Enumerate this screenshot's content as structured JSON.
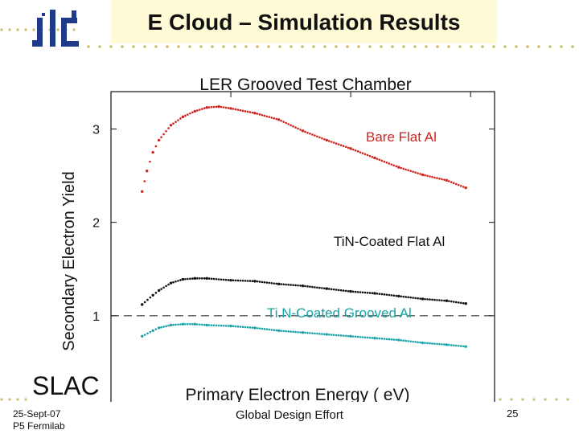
{
  "slide": {
    "title": "E Cloud – Simulation Results",
    "logo": "ilc",
    "slac": "SLAC",
    "date_line1": "25-Sept-07",
    "date_line2": "P5 Fermilab",
    "footer": "Global Design Effort",
    "page": "25",
    "colors": {
      "title_bg": "#fffbd6",
      "logo": "#1f3a8a",
      "dots": "#cbbf6a"
    }
  },
  "chart_data": {
    "type": "scatter",
    "title": "LER Grooved Test Chamber",
    "xlabel": "Primary Electron Energy  ( eV)",
    "ylabel": "Secondary  Electron Yield",
    "xlim": [
      0,
      1600
    ],
    "ylim": [
      0,
      3.4
    ],
    "xticks": [
      0,
      500,
      1000,
      1500
    ],
    "yticks": [
      0,
      1,
      2,
      3
    ],
    "reference_line": {
      "y": 1.0,
      "style": "dashed"
    },
    "series": [
      {
        "name": "Bare Flat Al",
        "color": "#d0231d",
        "x": [
          130,
          150,
          175,
          200,
          250,
          300,
          350,
          400,
          450,
          500,
          600,
          700,
          800,
          900,
          1000,
          1100,
          1200,
          1300,
          1400,
          1480
        ],
        "y": [
          2.33,
          2.55,
          2.75,
          2.88,
          3.04,
          3.13,
          3.19,
          3.23,
          3.24,
          3.22,
          3.17,
          3.1,
          2.98,
          2.88,
          2.79,
          2.69,
          2.59,
          2.51,
          2.45,
          2.37
        ]
      },
      {
        "name": "TiN-Coated  Flat  Al",
        "color": "#111111",
        "x": [
          130,
          175,
          200,
          250,
          300,
          350,
          400,
          500,
          600,
          700,
          800,
          900,
          1000,
          1100,
          1200,
          1300,
          1400,
          1480
        ],
        "y": [
          1.12,
          1.22,
          1.27,
          1.35,
          1.39,
          1.4,
          1.4,
          1.38,
          1.37,
          1.34,
          1.32,
          1.29,
          1.26,
          1.24,
          1.21,
          1.18,
          1.16,
          1.13
        ]
      },
      {
        "name": "Ti.N-Coated  Grooved  Al",
        "color": "#19a3a6",
        "x": [
          130,
          175,
          200,
          250,
          300,
          350,
          400,
          500,
          600,
          700,
          800,
          900,
          1000,
          1100,
          1200,
          1300,
          1400,
          1480
        ],
        "y": [
          0.78,
          0.84,
          0.87,
          0.9,
          0.91,
          0.91,
          0.9,
          0.89,
          0.87,
          0.84,
          0.82,
          0.8,
          0.78,
          0.76,
          0.74,
          0.71,
          0.69,
          0.67
        ]
      }
    ]
  }
}
